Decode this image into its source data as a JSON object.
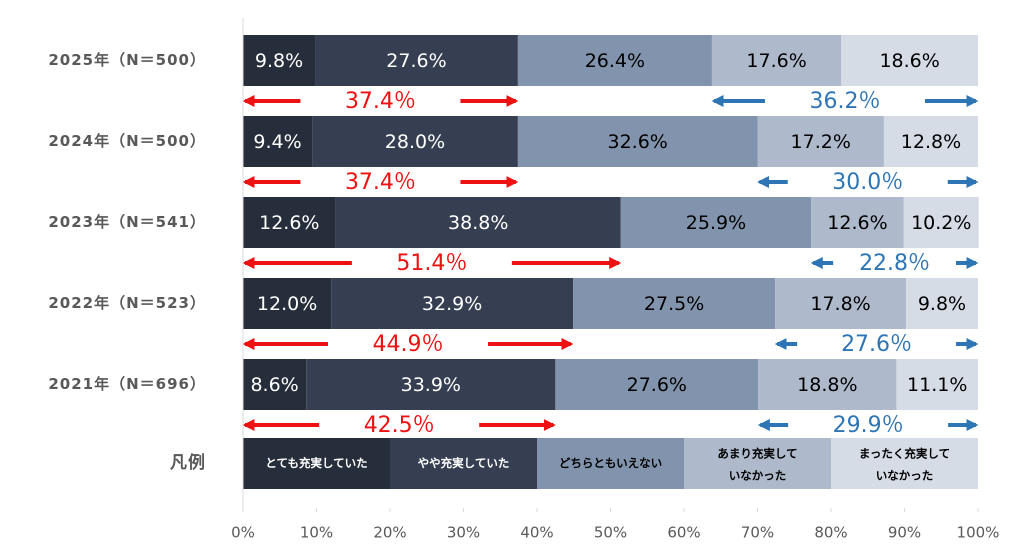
{
  "chart_data": {
    "type": "stacked-bar-horizontal",
    "categories": [
      "2025年（N＝500）",
      "2024年（N＝500）",
      "2023年（N＝541）",
      "2022年（N＝523）",
      "2021年（N＝696）"
    ],
    "series": [
      {
        "name": "とても充実していた",
        "color": "#272e3b",
        "text_color": "#ffffff",
        "values": [
          9.8,
          9.4,
          12.6,
          12.0,
          8.6
        ],
        "value_labels": [
          "9.8%",
          "9.4%",
          "12.6%",
          "12.0%",
          "8.6%"
        ]
      },
      {
        "name": "やや充実していた",
        "color": "#363f52",
        "text_color": "#ffffff",
        "values": [
          27.6,
          28.0,
          38.8,
          32.9,
          33.9
        ],
        "value_labels": [
          "27.6%",
          "28.0%",
          "38.8%",
          "32.9%",
          "33.9%"
        ]
      },
      {
        "name": "どちらともいえない",
        "color": "#8294ad",
        "text_color": "#000000",
        "values": [
          26.4,
          32.6,
          25.9,
          27.5,
          27.6
        ],
        "value_labels": [
          "26.4%",
          "32.6%",
          "25.9%",
          "27.5%",
          "27.6%"
        ]
      },
      {
        "name": "あまり充実していなかった",
        "color": "#aebacb",
        "text_color": "#000000",
        "values": [
          17.6,
          17.2,
          12.6,
          17.8,
          18.8
        ],
        "value_labels": [
          "17.6%",
          "17.2%",
          "12.6%",
          "17.8%",
          "18.8%"
        ]
      },
      {
        "name": "まったく充実していなかった",
        "color": "#d6dce6",
        "text_color": "#000000",
        "values": [
          18.6,
          12.8,
          10.2,
          9.8,
          11.1
        ],
        "value_labels": [
          "18.6%",
          "12.8%",
          "10.2%",
          "9.8%",
          "11.1%"
        ]
      }
    ],
    "annotations": [
      {
        "left": "37.4％",
        "right": "36.2％"
      },
      {
        "left": "37.4％",
        "right": "30.0％"
      },
      {
        "left": "51.4％",
        "right": "22.8％"
      },
      {
        "left": "44.9％",
        "right": "27.6％"
      },
      {
        "left": "42.5％",
        "right": "29.9％"
      }
    ],
    "annotation_colors": {
      "left": "#ee1111",
      "right": "#2e75b6"
    },
    "legend_title": "凡例",
    "xlim": [
      0,
      100
    ],
    "xticks": [
      {
        "value": 0,
        "label": "0%"
      },
      {
        "value": 10,
        "label": "10%"
      },
      {
        "value": 20,
        "label": "20%"
      },
      {
        "value": 30,
        "label": "30%"
      },
      {
        "value": 40,
        "label": "40%"
      },
      {
        "value": 50,
        "label": "50%"
      },
      {
        "value": 60,
        "label": "60%"
      },
      {
        "value": 70,
        "label": "70%"
      },
      {
        "value": 80,
        "label": "80%"
      },
      {
        "value": 90,
        "label": "90%"
      },
      {
        "value": 100,
        "label": "100%"
      }
    ]
  }
}
